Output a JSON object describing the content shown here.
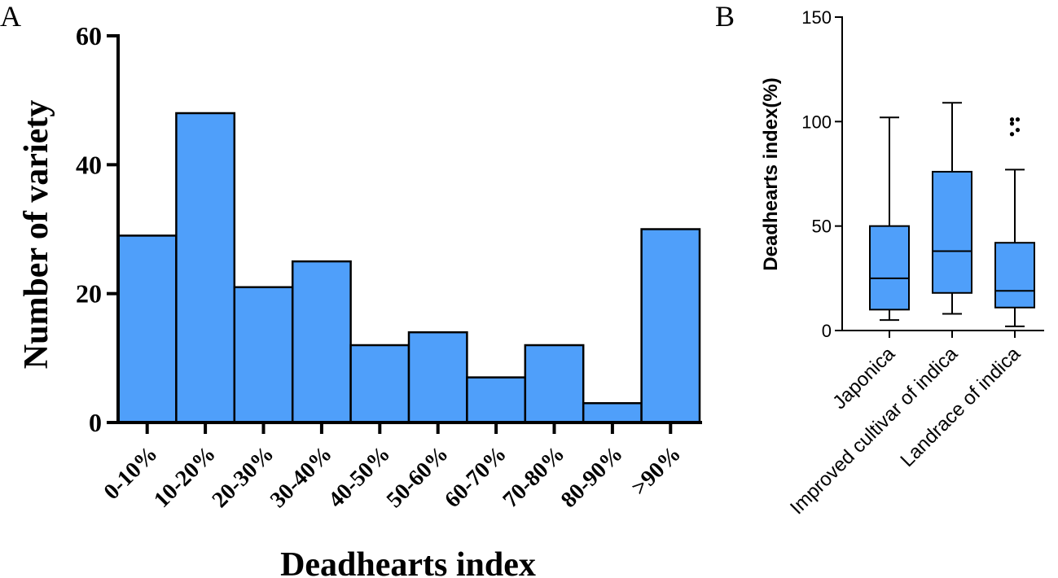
{
  "colors": {
    "bar_fill": "#4f9ffa",
    "stroke": "#000000",
    "background": "#ffffff"
  },
  "chart_data": [
    {
      "panel_label": "A",
      "type": "bar",
      "title": "",
      "xlabel": "Deadhearts index",
      "ylabel": "Number of variety",
      "categories": [
        "0-10%",
        "10-20%",
        "20-30%",
        "30-40%",
        "40-50%",
        "50-60%",
        "60-70%",
        "70-80%",
        "80-90%",
        ">90%"
      ],
      "values": [
        29,
        48,
        21,
        25,
        12,
        14,
        7,
        12,
        3,
        30
      ],
      "ylim": [
        0,
        60
      ],
      "yticks": [
        0,
        20,
        40,
        60
      ],
      "grid": false
    },
    {
      "panel_label": "B",
      "type": "box",
      "title": "",
      "xlabel": "",
      "ylabel": "Deadhearts index(%)",
      "categories": [
        "Japonica",
        "Improved cultivar of indica",
        "Landrace of indica"
      ],
      "boxes": [
        {
          "min": 5,
          "q1": 10,
          "median": 25,
          "q3": 50,
          "max": 102,
          "outliers": []
        },
        {
          "min": 8,
          "q1": 18,
          "median": 38,
          "q3": 76,
          "max": 109,
          "outliers": []
        },
        {
          "min": 2,
          "q1": 11,
          "median": 19,
          "q3": 42,
          "max": 77,
          "outliers": [
            94,
            96,
            99,
            101,
            101
          ]
        }
      ],
      "ylim": [
        0,
        150
      ],
      "yticks": [
        0,
        50,
        100,
        150
      ],
      "grid": false
    }
  ]
}
